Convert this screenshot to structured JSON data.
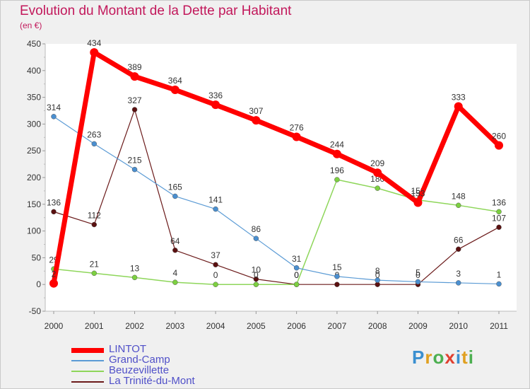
{
  "chart_data": {
    "type": "line",
    "title": "Evolution du Montant de la Dette par Habitant",
    "unit_label": "(en €)",
    "x": [
      "2000",
      "2001",
      "2002",
      "2003",
      "2004",
      "2005",
      "2006",
      "2007",
      "2008",
      "2009",
      "2010",
      "2011"
    ],
    "ylim": [
      -50,
      450
    ],
    "yticks": [
      -50,
      0,
      50,
      100,
      150,
      200,
      250,
      300,
      350,
      400,
      450
    ],
    "grid": false,
    "legend_position": "bottom-left",
    "series": [
      {
        "name": "LINTOT",
        "color": "#ff0000",
        "values": [
          2,
          434,
          389,
          364,
          336,
          307,
          276,
          244,
          209,
          153,
          333,
          260
        ]
      },
      {
        "name": "Grand-Camp",
        "color": "#5b9bd5",
        "values": [
          314,
          263,
          215,
          165,
          141,
          86,
          31,
          15,
          8,
          5,
          3,
          1
        ]
      },
      {
        "name": "Beuzevillette",
        "color": "#8ed65a",
        "values": [
          29,
          21,
          13,
          4,
          0,
          0,
          0,
          196,
          180,
          158,
          148,
          136
        ]
      },
      {
        "name": "La Trinité-du-Mont",
        "color": "#6b1a1a",
        "values": [
          136,
          112,
          327,
          64,
          37,
          10,
          0,
          0,
          0,
          0,
          66,
          107
        ]
      }
    ]
  },
  "brand": {
    "letters": [
      "P",
      "r",
      "o",
      "x",
      "i",
      "t",
      "i"
    ],
    "colors": [
      "#3a8fd0",
      "#e0a020",
      "#4caf50",
      "#e04030",
      "#3a8fd0",
      "#e0a020",
      "#4caf50"
    ]
  }
}
